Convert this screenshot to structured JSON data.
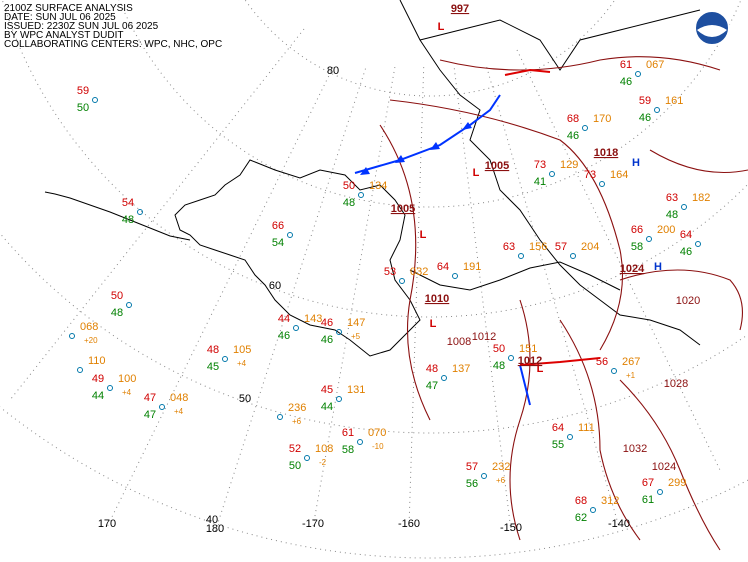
{
  "header": [
    "2100Z SURFACE ANALYSIS",
    "DATE: SUN JUL 06 2025",
    "ISSUED: 2230Z SUN JUL 06 2025",
    "BY WPC ANALYST DUDIT",
    "COLLABORATING CENTERS: WPC, NHC, OPC"
  ],
  "graticule": [
    "80",
    "60",
    "50",
    "40",
    "170",
    "180",
    "-170",
    "-160",
    "-150",
    "-140"
  ],
  "pressure_centers": [
    {
      "symbol": "L",
      "value": "997"
    },
    {
      "symbol": "L",
      "value": "1005"
    },
    {
      "symbol": "L",
      "value": "1005"
    },
    {
      "symbol": "L",
      "value": "1010"
    },
    {
      "symbol": "L",
      "value": "1012"
    },
    {
      "symbol": "H",
      "value": "1018"
    },
    {
      "symbol": "H",
      "value": "1024"
    }
  ],
  "isobar_labels": [
    "1012",
    "1008",
    "1020",
    "1028",
    "1032",
    "1024"
  ],
  "stations": [
    {
      "temp": "59",
      "dew": "50"
    },
    {
      "temp": "54",
      "dew": "48"
    },
    {
      "temp": "50",
      "dew": "48"
    },
    {
      "pres": "068",
      "tend": "+20"
    },
    {
      "pres": "110"
    },
    {
      "temp": "49",
      "dew": "44",
      "pres": "100",
      "tend": "+4"
    },
    {
      "temp": "47",
      "dew": "47",
      "pres": "048",
      "tend": "+4"
    },
    {
      "temp": "48",
      "dew": "45",
      "pres": "105",
      "tend": "+4"
    },
    {
      "temp": "44",
      "dew": "46",
      "pres": "143"
    },
    {
      "temp": "46",
      "dew": "46",
      "pres": "147",
      "tend": "+5"
    },
    {
      "temp": "45",
      "dew": "44",
      "pres": "131"
    },
    {
      "pres": "236",
      "tend": "+6"
    },
    {
      "temp": "52",
      "dew": "50",
      "pres": "108",
      "tend": "-2"
    },
    {
      "temp": "61",
      "dew": "58",
      "pres": "070",
      "tend": "-10"
    },
    {
      "temp": "57",
      "dew": "56",
      "pres": "232",
      "tend": "+6"
    },
    {
      "temp": "68",
      "dew": "62",
      "pres": "312"
    },
    {
      "temp": "67",
      "dew": "61",
      "pres": "299"
    },
    {
      "temp": "64",
      "dew": "55",
      "pres": "111"
    },
    {
      "temp": "56",
      "pres": "267",
      "tend": "+1"
    },
    {
      "temp": "50",
      "dew": "48",
      "pres": "151"
    },
    {
      "temp": "48",
      "dew": "47",
      "pres": "137"
    },
    {
      "temp": "66",
      "dew": "54"
    },
    {
      "temp": "53",
      "pres": "032"
    },
    {
      "temp": "64",
      "pres": "191"
    },
    {
      "temp": "63",
      "pres": "156"
    },
    {
      "temp": "57",
      "pres": "204"
    },
    {
      "temp": "66",
      "dew": "58",
      "pres": "200"
    },
    {
      "temp": "64",
      "dew": "46"
    },
    {
      "temp": "63",
      "dew": "48",
      "pres": "182"
    },
    {
      "temp": "73",
      "pres": "164"
    },
    {
      "temp": "73",
      "dew": "41",
      "pres": "129"
    },
    {
      "temp": "59",
      "dew": "46",
      "pres": "161"
    },
    {
      "temp": "68",
      "dew": "46",
      "pres": "170"
    },
    {
      "temp": "50",
      "dew": "48",
      "pres": "134"
    },
    {
      "temp": "61",
      "dew": "46",
      "pres": "067"
    }
  ]
}
